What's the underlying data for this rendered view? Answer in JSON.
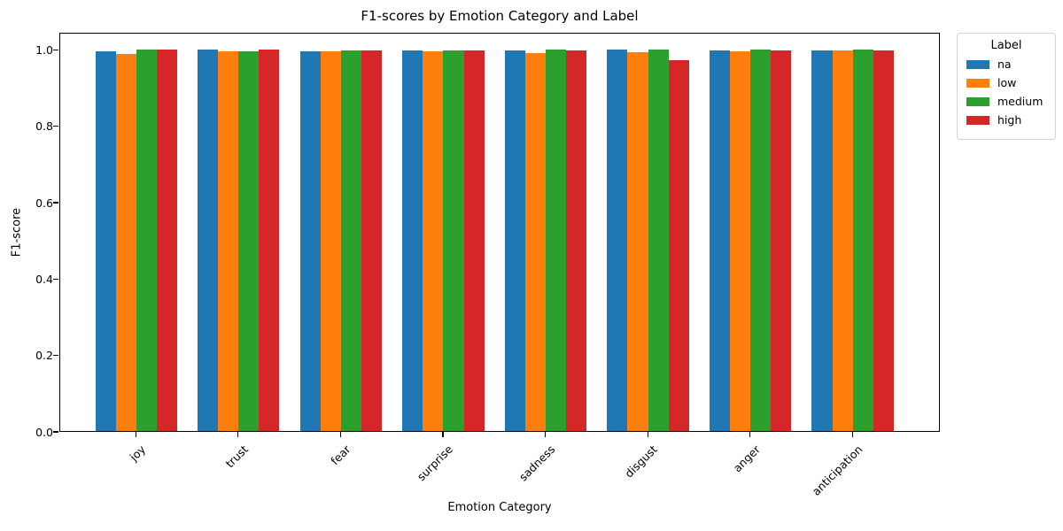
{
  "chart_data": {
    "type": "bar",
    "title": "F1-scores by Emotion Category and Label",
    "xlabel": "Emotion Category",
    "ylabel": "F1-score",
    "legend_title": "Label",
    "categories": [
      "joy",
      "trust",
      "fear",
      "surprise",
      "sadness",
      "disgust",
      "anger",
      "anticipation"
    ],
    "series": [
      {
        "name": "na",
        "color": "#1f77b4",
        "values": [
          0.995,
          0.998,
          0.995,
          0.997,
          0.996,
          0.999,
          0.997,
          0.997
        ]
      },
      {
        "name": "low",
        "color": "#ff7f0e",
        "values": [
          0.986,
          0.994,
          0.993,
          0.993,
          0.989,
          0.992,
          0.994,
          0.997
        ]
      },
      {
        "name": "medium",
        "color": "#2ca02c",
        "values": [
          0.999,
          0.993,
          0.997,
          0.997,
          0.998,
          0.998,
          0.998,
          0.998
        ]
      },
      {
        "name": "high",
        "color": "#d62728",
        "values": [
          0.998,
          0.998,
          0.997,
          0.997,
          0.997,
          0.97,
          0.997,
          0.997
        ]
      }
    ],
    "yticks": [
      0.0,
      0.2,
      0.4,
      0.6,
      0.8,
      1.0
    ],
    "ylim": [
      0,
      1.045
    ],
    "grid": false,
    "legend_position": "upper-right-outside"
  }
}
